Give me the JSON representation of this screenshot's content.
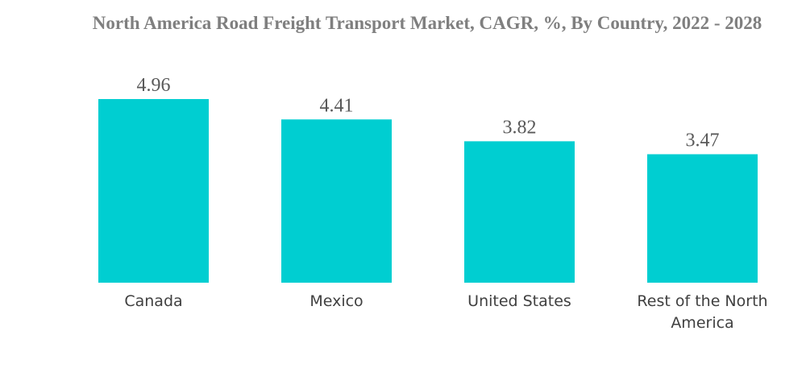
{
  "chart_data": {
    "type": "bar",
    "title": "North America Road Freight Transport Market, CAGR, %, By Country, 2022 - 2028",
    "categories": [
      "Canada",
      "Mexico",
      "United States",
      "Rest of the North America"
    ],
    "category_lines": [
      [
        "Canada"
      ],
      [
        "Mexico"
      ],
      [
        "United States"
      ],
      [
        "Rest of the North",
        "America"
      ]
    ],
    "values": [
      4.96,
      4.41,
      3.82,
      3.47
    ],
    "value_labels": [
      "4.96",
      "4.41",
      "3.82",
      "3.47"
    ],
    "xlabel": "",
    "ylabel": "",
    "ylim": [
      0,
      4.96
    ],
    "grid": false,
    "bar_color": "#00CED1"
  }
}
